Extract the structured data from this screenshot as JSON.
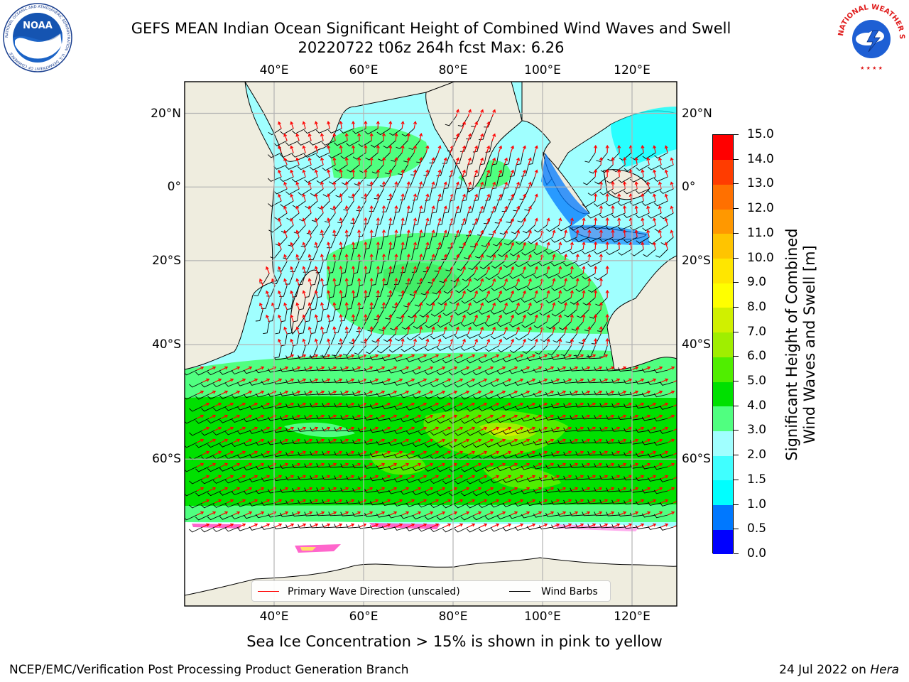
{
  "title_line1": "GEFS MEAN Indian Ocean Significant Height of Combined Wind Waves and Swell",
  "title_line2": "20220722 t06z 264h fcst   Max: 6.26",
  "logos": {
    "noaa_text": "NOAA",
    "noaa_ring_text": "NATIONAL OCEANIC AND ATMOSPHERIC ADMINISTRATION · U.S. DEPARTMENT OF COMMERCE",
    "nws_ring_text": "NATIONAL WEATHER SERVICE"
  },
  "map": {
    "lon_range": [
      20,
      130
    ],
    "lat_range": [
      -75,
      28
    ],
    "lon_ticks": [
      "40°E",
      "60°E",
      "80°E",
      "100°E",
      "120°E"
    ],
    "lon_values": [
      40,
      60,
      80,
      100,
      120
    ],
    "lat_ticks_left": [
      "20°N",
      "0°",
      "20°S",
      "40°S",
      "60°S"
    ],
    "lat_ticks_right": [
      "20°N",
      "0°",
      "20°S",
      "40°S",
      "60°S"
    ],
    "lat_values": [
      20,
      0,
      -20,
      -40,
      -60
    ],
    "grid": true,
    "land_color": "#efeddf",
    "ice_color": "#ffffff",
    "wave_direction_color": "#ff0000",
    "wind_barb_color": "#000000"
  },
  "colorbar": {
    "title_line1": "Significant Height of Combined",
    "title_line2": "Wind Waves and Swell [m]",
    "tick_labels": [
      "0.0",
      "0.5",
      "1.0",
      "1.5",
      "2.0",
      "3.0",
      "4.0",
      "5.0",
      "6.0",
      "7.0",
      "8.0",
      "9.0",
      "10.0",
      "11.0",
      "12.0",
      "13.0",
      "14.0",
      "15.0"
    ],
    "colors": [
      "#0000ff",
      "#0078ff",
      "#00ffff",
      "#40ffff",
      "#a0ffff",
      "#50ff80",
      "#00e000",
      "#50ee00",
      "#a0ee00",
      "#d0f000",
      "#ffff00",
      "#ffe600",
      "#ffc400",
      "#ff9800",
      "#ff7000",
      "#ff3c00",
      "#ff0000"
    ]
  },
  "legend": {
    "wave_label": "Primary Wave Direction (unscaled)",
    "wind_label": "Wind Barbs"
  },
  "caption": "Sea Ice Concentration > 15% is shown in pink to yellow",
  "footer_left": "NCEP/EMC/Verification Post Processing Product Generation Branch",
  "footer_date": "24 Jul 2022 on",
  "footer_host": "Hera"
}
